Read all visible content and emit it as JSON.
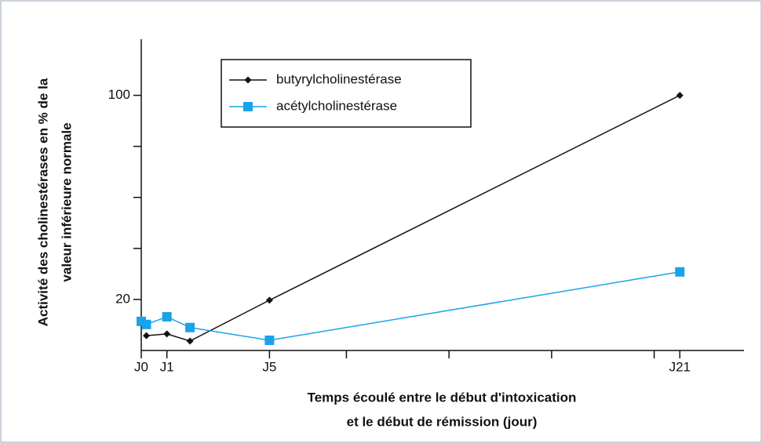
{
  "chart_data": {
    "type": "line",
    "xlabel": [
      "Temps écoulé entre le début d'intoxication",
      "et le début de rémission (jour)"
    ],
    "ylabel": [
      "Activité des cholinestérases en % de la",
      "valeur inférieure normale"
    ],
    "xlim": [
      0,
      23.5
    ],
    "xticks": [
      {
        "value": 0,
        "label": "J0"
      },
      {
        "value": 1,
        "label": "J1"
      },
      {
        "value": 5,
        "label": "J5"
      },
      {
        "value": 21,
        "label": "J21"
      }
    ],
    "xminor_ticks": [
      8,
      12,
      16,
      20
    ],
    "ylim": [
      0,
      122
    ],
    "yticks": [
      20,
      100
    ],
    "yminor_ticks": [
      40,
      60,
      80
    ],
    "series": [
      {
        "name": "butyrylcholinestérase",
        "color": "#111111",
        "marker": "diamond",
        "x": [
          0.2,
          1,
          1.9,
          5,
          21
        ],
        "values": [
          5.8,
          6.5,
          3.7,
          19.7,
          100
        ]
      },
      {
        "name": "acétylcholinestérase",
        "color": "#1aa3e8",
        "marker": "square",
        "x": [
          0,
          0.2,
          1,
          1.9,
          5,
          21
        ],
        "values": [
          11.4,
          10.2,
          13.2,
          9,
          4,
          30.8
        ]
      }
    ]
  }
}
